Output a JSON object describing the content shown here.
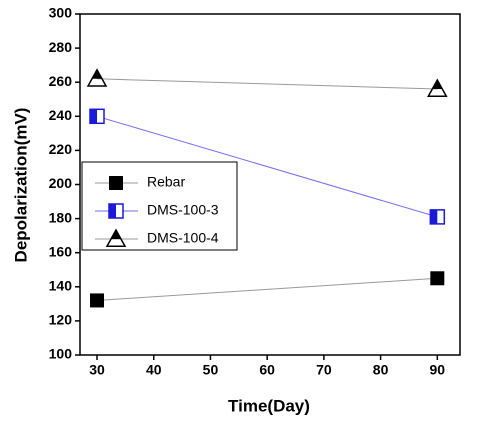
{
  "chart_data": {
    "type": "line",
    "x_label": "Time(Day)",
    "y_label": "Depolarization(mV)",
    "x": [
      30,
      90
    ],
    "series": [
      {
        "name": "Rebar",
        "color": "#000000",
        "line_color": "#999999",
        "marker": "square-filled",
        "values": [
          132,
          145
        ]
      },
      {
        "name": "DMS-100-3",
        "color": "#1a1ad8",
        "line_color": "#6f6ff0",
        "marker": "square-half",
        "values": [
          240,
          181
        ]
      },
      {
        "name": "DMS-100-4",
        "color": "#000000",
        "line_color": "#999999",
        "marker": "triangle-half",
        "values": [
          262,
          256
        ]
      }
    ],
    "xlim": [
      27,
      94
    ],
    "xticks": [
      30,
      40,
      50,
      60,
      70,
      80,
      90
    ],
    "ylim": [
      100,
      300
    ],
    "yticks": [
      100,
      120,
      140,
      160,
      180,
      200,
      220,
      240,
      260,
      280,
      300
    ],
    "grid": false,
    "legend": "left"
  }
}
